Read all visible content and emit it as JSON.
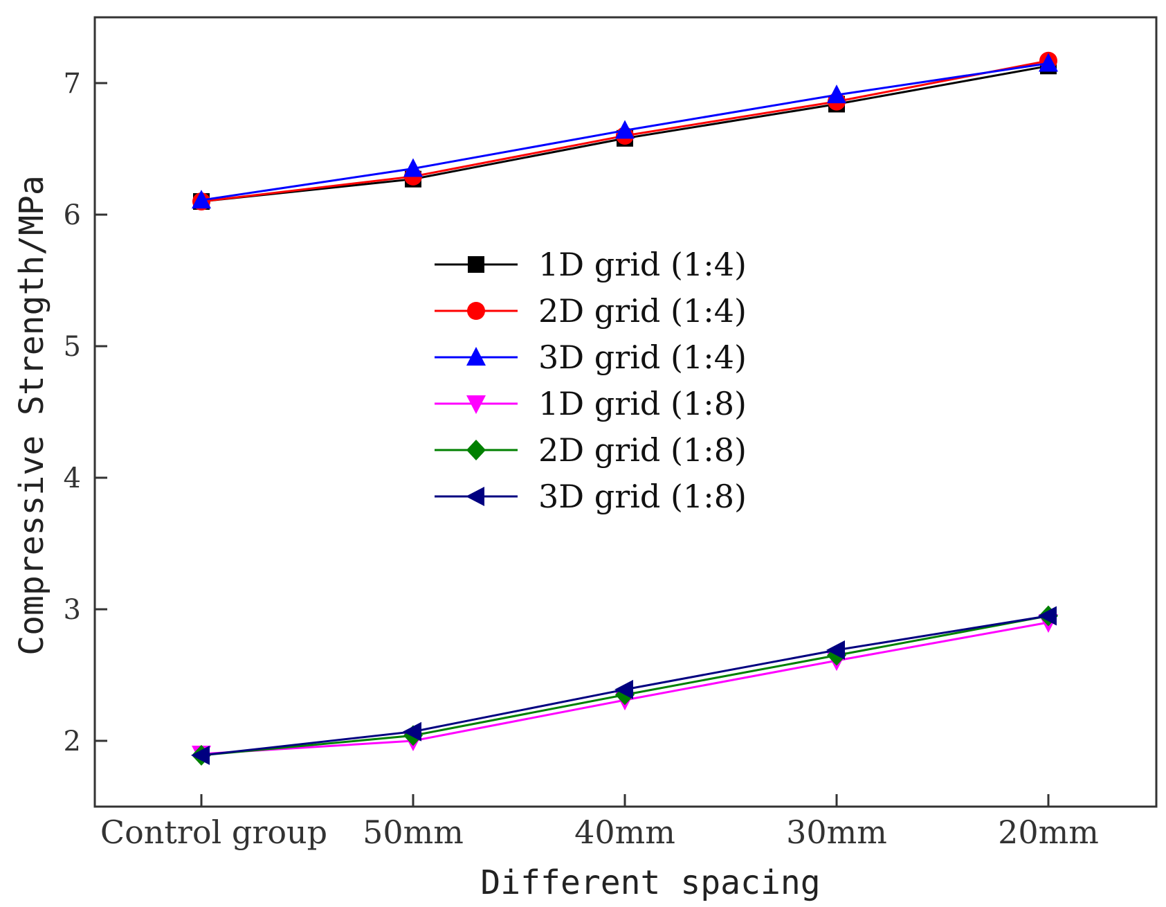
{
  "chart_data": {
    "type": "line",
    "title": "",
    "xlabel": "Different spacing",
    "ylabel": "Compressive Strength/MPa",
    "categories": [
      "Control group",
      "50mm",
      "40mm",
      "30mm",
      "20mm"
    ],
    "ylim": [
      1.5,
      7.5
    ],
    "yticks": [
      2,
      3,
      4,
      5,
      6,
      7
    ],
    "grid": false,
    "legend_position": "center",
    "series": [
      {
        "name": "1D grid (1:4)",
        "color": "#000000",
        "marker": "square",
        "values": [
          6.1,
          6.27,
          6.58,
          6.84,
          7.13
        ]
      },
      {
        "name": "2D grid (1:4)",
        "color": "#ff0000",
        "marker": "circle",
        "values": [
          6.1,
          6.29,
          6.6,
          6.86,
          7.17
        ]
      },
      {
        "name": "3D grid (1:4)",
        "color": "#0000ff",
        "marker": "triangle-up",
        "values": [
          6.11,
          6.35,
          6.64,
          6.91,
          7.15
        ]
      },
      {
        "name": "1D grid (1:8)",
        "color": "#ff00ff",
        "marker": "triangle-down",
        "values": [
          1.9,
          2.0,
          2.31,
          2.61,
          2.9
        ]
      },
      {
        "name": "2D grid (1:8)",
        "color": "#008000",
        "marker": "diamond",
        "values": [
          1.89,
          2.04,
          2.35,
          2.65,
          2.95
        ]
      },
      {
        "name": "3D grid (1:8)",
        "color": "#000080",
        "marker": "triangle-left",
        "values": [
          1.89,
          2.07,
          2.39,
          2.69,
          2.95
        ]
      }
    ]
  }
}
